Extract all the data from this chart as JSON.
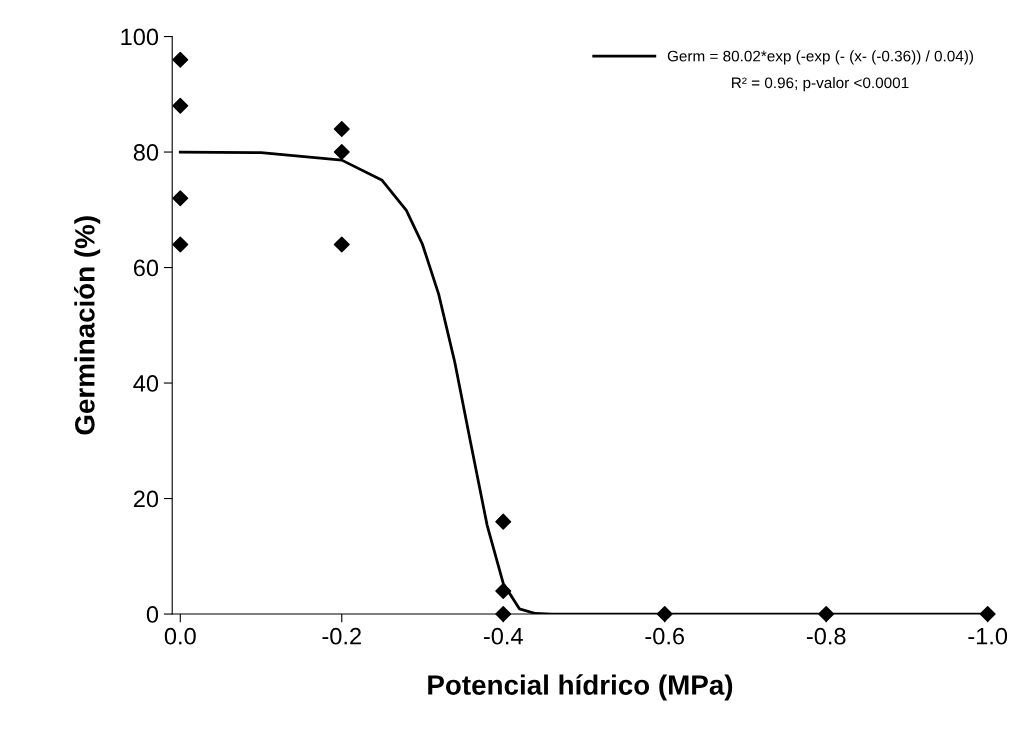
{
  "chart_data": {
    "type": "scatter",
    "xlabel": "Potencial hídrico (MPa)",
    "ylabel": "Germinación (%)",
    "xlim": [
      0.01,
      -1.0
    ],
    "xticks": [
      {
        "value": 0,
        "label": "0.0"
      },
      {
        "value": -0.2,
        "label": "-0.2"
      },
      {
        "value": -0.4,
        "label": "-0.4"
      },
      {
        "value": -0.6,
        "label": "-0.6"
      },
      {
        "value": -0.8,
        "label": "-0.8"
      },
      {
        "value": -1.0,
        "label": "-1.0"
      }
    ],
    "ylim": [
      0,
      100
    ],
    "yticks": [
      0,
      20,
      40,
      60,
      80,
      100
    ],
    "grid": false,
    "legend": "top right",
    "series": [
      {
        "color": "#000000",
        "marker": "diamond",
        "x": [
          0,
          0,
          0,
          0,
          -0.2,
          -0.2,
          -0.2,
          -0.4,
          -0.4,
          -0.4,
          -0.6,
          -0.8,
          -1.0
        ],
        "values": [
          96,
          88,
          72,
          64,
          84,
          80,
          64,
          16,
          4,
          0,
          0,
          0,
          0
        ]
      },
      {
        "type": "line",
        "name": "Germ = 80.02*exp (-exp (- (x- (-0.36)) / 0.04))",
        "color": "#000000",
        "line_style": "solid",
        "marker": "none",
        "x": [
          0,
          -0.1,
          -0.2,
          -0.25,
          -0.28,
          -0.3,
          -0.32,
          -0.34,
          -0.36,
          -0.38,
          -0.4,
          -0.42,
          -0.44,
          -0.46,
          -0.6,
          -0.8,
          -1.0
        ],
        "values": [
          80.0,
          79.9,
          78.6,
          75.1,
          69.9,
          64.0,
          55.4,
          43.6,
          29.4,
          15.4,
          5.3,
          0.9,
          0.1,
          0,
          0,
          0,
          0
        ]
      }
    ],
    "annotations": [
      "R² = 0.96; p-valor <0.0001"
    ]
  }
}
